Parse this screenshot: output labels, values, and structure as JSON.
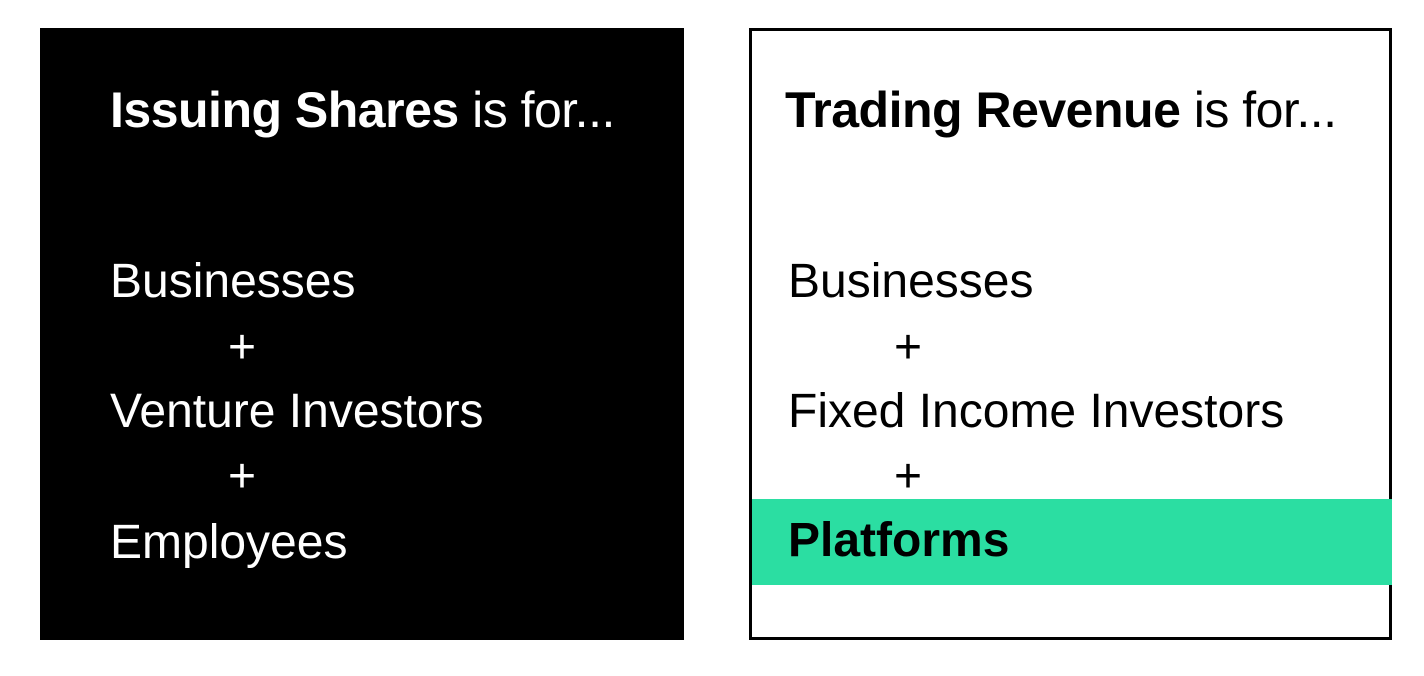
{
  "left_panel": {
    "heading_strong": "Issuing Shares",
    "heading_rest": " is for...",
    "items": [
      "Businesses",
      "Venture Investors",
      "Employees"
    ],
    "plus": "+",
    "background": "#000000",
    "text_color": "#ffffff"
  },
  "right_panel": {
    "heading_strong": "Trading Revenue",
    "heading_rest": " is for...",
    "items": [
      "Businesses",
      "Fixed Income Investors"
    ],
    "highlighted_item": "Platforms",
    "plus": "+",
    "background": "#ffffff",
    "text_color": "#000000",
    "highlight_color": "#2bdea2"
  }
}
